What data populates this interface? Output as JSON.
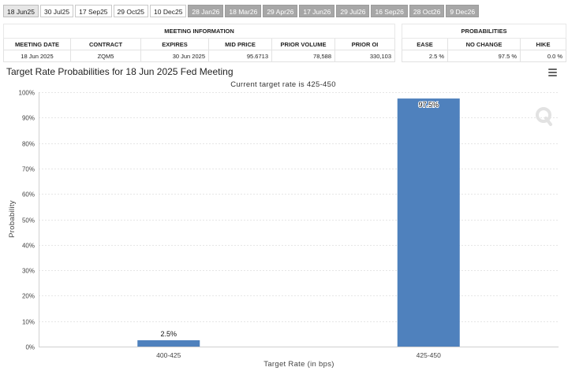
{
  "tabs": [
    {
      "label": "18 Jun25",
      "style": "active"
    },
    {
      "label": "30 Jul25",
      "style": "light"
    },
    {
      "label": "17 Sep25",
      "style": "light"
    },
    {
      "label": "29 Oct25",
      "style": "light"
    },
    {
      "label": "10 Dec25",
      "style": "light"
    },
    {
      "label": "28 Jan26",
      "style": "dark"
    },
    {
      "label": "18 Mar26",
      "style": "dark"
    },
    {
      "label": "29 Apr26",
      "style": "dark"
    },
    {
      "label": "17 Jun26",
      "style": "dark"
    },
    {
      "label": "29 Jul26",
      "style": "dark"
    },
    {
      "label": "16 Sep26",
      "style": "dark"
    },
    {
      "label": "28 Oct26",
      "style": "dark"
    },
    {
      "label": "9 Dec26",
      "style": "dark"
    }
  ],
  "meeting_info": {
    "header": "MEETING INFORMATION",
    "columns": [
      "MEETING DATE",
      "CONTRACT",
      "EXPIRES",
      "MID PRICE",
      "PRIOR VOLUME",
      "PRIOR OI"
    ],
    "values": [
      "18 Jun 2025",
      "ZQM5",
      "30 Jun 2025",
      "95.6713",
      "78,588",
      "330,103"
    ]
  },
  "probabilities": {
    "header": "PROBABILITIES",
    "columns": [
      "EASE",
      "NO CHANGE",
      "HIKE"
    ],
    "values": [
      "2.5 %",
      "97.5 %",
      "0.0 %"
    ]
  },
  "menu_icon": "hamburger-menu-icon",
  "watermark_icon": "q-logo-icon",
  "chart_data": {
    "type": "bar",
    "title": "Target Rate Probabilities for 18 Jun 2025 Fed Meeting",
    "subtitle": "Current target rate is 425-450",
    "xlabel": "Target Rate (in bps)",
    "ylabel": "Probability",
    "categories": [
      "400-425",
      "425-450"
    ],
    "values": [
      2.5,
      97.5
    ],
    "data_labels": [
      "2.5%",
      "97.5%"
    ],
    "ylim": [
      0,
      100
    ],
    "yticks": [
      0,
      10,
      20,
      30,
      40,
      50,
      60,
      70,
      80,
      90,
      100
    ],
    "ytick_labels": [
      "0%",
      "10%",
      "20%",
      "30%",
      "40%",
      "50%",
      "60%",
      "70%",
      "80%",
      "90%",
      "100%"
    ],
    "grid": true,
    "bar_color": "#4f81bd"
  }
}
